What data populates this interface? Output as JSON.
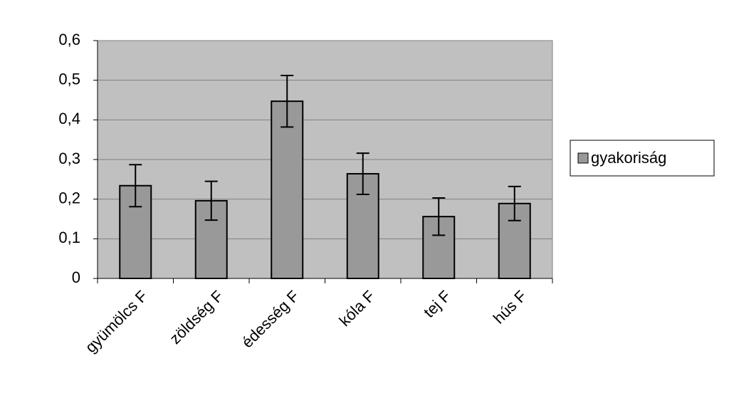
{
  "chart_data": {
    "type": "bar",
    "categories": [
      "gyümölcs F",
      "zöldség F",
      "édesség F",
      "kóla F",
      "tej F",
      "hús F"
    ],
    "series": [
      {
        "name": "gyakoriság",
        "color": "#999999",
        "values": [
          0.234,
          0.196,
          0.447,
          0.264,
          0.156,
          0.189
        ],
        "errors": [
          0.053,
          0.049,
          0.065,
          0.052,
          0.047,
          0.043
        ]
      }
    ],
    "ylim": [
      0,
      0.6
    ],
    "yticks": [
      0,
      {
        "value": 0.1,
        "label": "0,1"
      },
      {
        "value": 0.2,
        "label": "0,2"
      },
      {
        "value": 0.3,
        "label": "0,3"
      },
      {
        "value": 0.4,
        "label": "0,4"
      },
      {
        "value": 0.5,
        "label": "0,5"
      },
      {
        "value": 0.6,
        "label": "0,6"
      }
    ],
    "grid": true,
    "legend": "right"
  }
}
